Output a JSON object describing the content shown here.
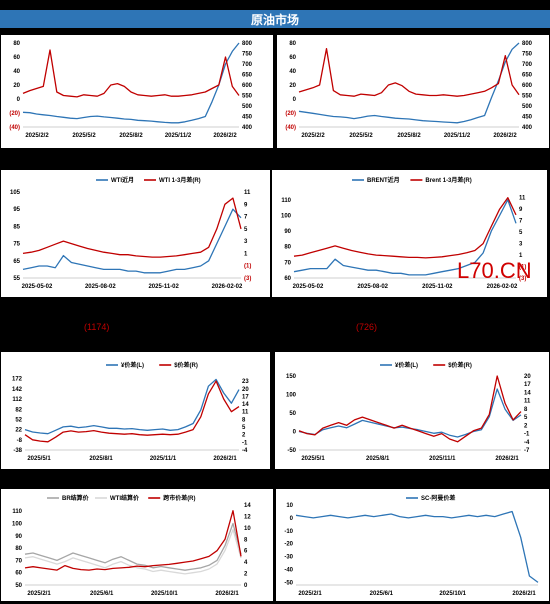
{
  "header": {
    "title": "原油市场"
  },
  "watermark": "L70.CN",
  "section_labels": {
    "left": "(1174)",
    "right": "(726)"
  },
  "chart_data": [
    {
      "id": "c1",
      "type": "line",
      "series": [
        {
          "color": "#2e75b6",
          "axis": "right",
          "values": [
            470,
            468,
            462,
            458,
            455,
            450,
            446,
            442,
            440,
            445,
            450,
            452,
            448,
            445,
            442,
            438,
            436,
            432,
            430,
            428,
            425,
            422,
            420,
            420,
            425,
            432,
            440,
            450,
            520,
            600,
            700,
            760,
            800
          ]
        },
        {
          "color": "#c00000",
          "axis": "left",
          "values": [
            8,
            12,
            15,
            18,
            70,
            10,
            5,
            4,
            3,
            6,
            5,
            4,
            8,
            20,
            22,
            18,
            10,
            6,
            5,
            4,
            5,
            6,
            4,
            4,
            5,
            6,
            8,
            10,
            15,
            20,
            60,
            18,
            5
          ]
        }
      ],
      "x_labels": [
        "2025/2/2",
        "2025/5/2",
        "2025/8/2",
        "2025/11/2",
        "2026/2/2"
      ],
      "left_ticks": [
        "80",
        "60",
        "40",
        "20",
        "0",
        "(20)",
        "(40)"
      ],
      "right_ticks": [
        "800",
        "750",
        "700",
        "650",
        "600",
        "550",
        "500",
        "450",
        "400"
      ],
      "left_range": [
        -40,
        80
      ],
      "right_range": [
        400,
        800
      ]
    },
    {
      "id": "c2",
      "type": "line",
      "series": [
        {
          "color": "#2e75b6",
          "axis": "right",
          "values": [
            475,
            470,
            465,
            460,
            455,
            450,
            448,
            445,
            440,
            445,
            452,
            455,
            450,
            446,
            442,
            440,
            438,
            434,
            430,
            428,
            426,
            424,
            422,
            420,
            426,
            435,
            445,
            455,
            540,
            620,
            710,
            770,
            800
          ]
        },
        {
          "color": "#c00000",
          "axis": "left",
          "values": [
            10,
            13,
            16,
            20,
            72,
            12,
            6,
            5,
            4,
            7,
            6,
            5,
            9,
            20,
            23,
            19,
            11,
            7,
            6,
            5,
            5,
            6,
            5,
            4,
            5,
            7,
            9,
            11,
            16,
            22,
            62,
            20,
            6
          ]
        }
      ],
      "x_labels": [
        "2025/2/2",
        "2025/5/2",
        "2025/8/2",
        "2025/11/2",
        "2026/2/2"
      ],
      "left_ticks": [
        "80",
        "60",
        "40",
        "20",
        "0",
        "(20)",
        "(40)"
      ],
      "right_ticks": [
        "800",
        "750",
        "700",
        "650",
        "600",
        "550",
        "500",
        "450",
        "400"
      ],
      "left_range": [
        -40,
        80
      ],
      "right_range": [
        400,
        800
      ]
    },
    {
      "id": "c3",
      "type": "line",
      "legend": [
        "WTI近月",
        "WTI 1-3月差(R)"
      ],
      "series": [
        {
          "name": "WTI近月",
          "color": "#2e75b6",
          "axis": "left",
          "values": [
            60,
            61,
            62,
            62,
            61,
            68,
            64,
            63,
            62,
            61,
            60,
            60,
            60,
            59,
            59,
            58,
            58,
            58,
            59,
            60,
            60,
            61,
            62,
            65,
            75,
            85,
            95,
            90
          ]
        },
        {
          "name": "WTI 1-3月差(R)",
          "color": "#c00000",
          "axis": "right",
          "values": [
            1,
            1.2,
            1.5,
            2,
            2.5,
            3,
            2.6,
            2.2,
            1.8,
            1.5,
            1.2,
            1,
            0.8,
            0.8,
            0.6,
            0.5,
            0.4,
            0.4,
            0.5,
            0.6,
            0.8,
            1,
            1.2,
            2,
            5,
            9,
            10,
            5
          ]
        }
      ],
      "x_labels": [
        "2025-05-02",
        "2025-08-02",
        "2025-11-02",
        "2026-02-02"
      ],
      "left_ticks": [
        "105",
        "95",
        "85",
        "75",
        "65",
        "55"
      ],
      "right_ticks": [
        "11",
        "9",
        "7",
        "5",
        "3",
        "1",
        "(1)",
        "(3)"
      ],
      "left_range": [
        55,
        105
      ],
      "right_range": [
        -3,
        11
      ]
    },
    {
      "id": "c4",
      "type": "line",
      "legend": [
        "BRENT近月",
        "Brent 1-3月差(R)"
      ],
      "series": [
        {
          "name": "BRENT近月",
          "color": "#2e75b6",
          "axis": "left",
          "values": [
            64,
            65,
            66,
            66,
            66,
            72,
            68,
            67,
            66,
            65,
            65,
            64,
            63,
            63,
            62,
            62,
            62,
            63,
            64,
            65,
            66,
            68,
            70,
            76,
            90,
            100,
            110,
            95
          ]
        },
        {
          "name": "Brent 1-3月差(R)",
          "color": "#c00000",
          "axis": "right",
          "values": [
            0.8,
            1,
            1.4,
            1.8,
            2.2,
            2.6,
            2.2,
            1.8,
            1.5,
            1.2,
            1,
            0.9,
            0.8,
            0.7,
            0.6,
            0.6,
            0.5,
            0.6,
            0.7,
            0.9,
            1.1,
            1.4,
            1.8,
            3,
            6,
            9,
            11,
            8
          ]
        }
      ],
      "x_labels": [
        "2025-05-02",
        "2025-08-02",
        "2025-11-02",
        "2026-02-02"
      ],
      "left_ticks": [
        "110",
        "100",
        "90",
        "80",
        "70",
        "60"
      ],
      "right_ticks": [
        "11",
        "9",
        "7",
        "5",
        "3",
        "1",
        "(1)",
        "(3)"
      ],
      "left_range": [
        60,
        115
      ],
      "right_range": [
        -3,
        12
      ]
    },
    {
      "id": "c5",
      "type": "line",
      "legend": [
        "¥价差(L)",
        "$价差(R)"
      ],
      "series": [
        {
          "name": "¥价差(L)",
          "color": "#2e75b6",
          "axis": "left",
          "values": [
            22,
            15,
            12,
            10,
            20,
            30,
            32,
            28,
            30,
            34,
            30,
            26,
            26,
            24,
            25,
            22,
            20,
            22,
            24,
            20,
            22,
            30,
            40,
            80,
            150,
            170,
            130,
            100,
            140
          ]
        },
        {
          "name": "$价差(R)",
          "color": "#c00000",
          "axis": "right",
          "values": [
            2,
            0,
            -0.5,
            -0.8,
            1,
            3,
            3.5,
            3,
            3.2,
            3.6,
            3,
            2.6,
            2.4,
            2.2,
            2.4,
            2,
            1.8,
            2,
            2.2,
            2,
            2.2,
            3,
            4,
            9,
            18,
            23,
            16,
            11,
            13
          ]
        }
      ],
      "x_labels": [
        "2025/5/1",
        "2025/8/1",
        "2025/11/1",
        "2026/2/1"
      ],
      "left_ticks": [
        "172",
        "142",
        "112",
        "82",
        "52",
        "22",
        "-8",
        "-38"
      ],
      "right_ticks": [
        "23",
        "20",
        "17",
        "14",
        "11",
        "8",
        "5",
        "2",
        "-1",
        "-4"
      ],
      "left_range": [
        -38,
        180
      ],
      "right_range": [
        -4,
        25
      ]
    },
    {
      "id": "c6",
      "type": "line",
      "legend": [
        "¥价差(L)",
        "$价差(R)"
      ],
      "series": [
        {
          "name": "¥价差(L)",
          "color": "#2e75b6",
          "axis": "left",
          "values": [
            0,
            -5,
            -8,
            5,
            10,
            15,
            10,
            20,
            30,
            25,
            20,
            15,
            10,
            12,
            8,
            5,
            0,
            -5,
            -2,
            -10,
            -15,
            -8,
            0,
            5,
            40,
            115,
            60,
            30,
            45
          ]
        },
        {
          "name": "$价差(R)",
          "color": "#c00000",
          "axis": "right",
          "values": [
            0,
            -1,
            -1.5,
            1,
            2,
            3,
            2,
            4,
            5,
            4,
            3,
            2,
            1,
            2,
            1,
            0,
            -1,
            -2,
            -1,
            -3,
            -4,
            -2,
            0,
            1,
            6,
            20,
            10,
            4,
            7
          ]
        }
      ],
      "x_labels": [
        "2025/5/1",
        "2025/8/1",
        "2025/11/1",
        "2026/2/1"
      ],
      "left_ticks": [
        "150",
        "100",
        "50",
        "0",
        "-50"
      ],
      "right_ticks": [
        "20",
        "17",
        "14",
        "11",
        "8",
        "5",
        "2",
        "-1",
        "-4",
        "-7"
      ],
      "left_range": [
        -50,
        150
      ],
      "right_range": [
        -7,
        20
      ]
    },
    {
      "id": "c7",
      "type": "line",
      "legend": [
        "BR结算价",
        "WTI结算价",
        "跨市价差(R)"
      ],
      "series": [
        {
          "name": "BR结算价",
          "color": "#a6a6a6",
          "axis": "left",
          "values": [
            75,
            76,
            74,
            72,
            70,
            73,
            76,
            74,
            72,
            70,
            68,
            71,
            73,
            70,
            67,
            66,
            64,
            65,
            64,
            63,
            62,
            63,
            64,
            66,
            70,
            82,
            100,
            75
          ]
        },
        {
          "name": "WTI结算价",
          "color": "#d9d9d9",
          "axis": "left",
          "values": [
            72,
            73,
            71,
            69,
            67,
            69,
            72,
            70,
            68,
            66,
            64,
            67,
            69,
            66,
            64,
            63,
            61,
            62,
            61,
            60,
            59,
            60,
            61,
            63,
            67,
            78,
            95,
            72
          ]
        },
        {
          "name": "跨市价差(R)",
          "color": "#c00000",
          "axis": "right",
          "values": [
            3,
            3.2,
            3,
            2.8,
            2.6,
            3.4,
            2.9,
            2.7,
            2.6,
            2.8,
            2.7,
            2.9,
            3,
            3.1,
            3.3,
            3.2,
            3.4,
            3.5,
            3.6,
            3.8,
            4,
            4.2,
            4.6,
            5,
            6,
            8,
            13,
            5
          ]
        }
      ],
      "x_labels": [
        "2025/2/1",
        "2025/6/1",
        "2025/10/1",
        "2026/2/1"
      ],
      "left_ticks": [
        "110",
        "100",
        "90",
        "80",
        "70",
        "60",
        "50"
      ],
      "right_ticks": [
        "14",
        "12",
        "10",
        "8",
        "6",
        "4",
        "2",
        "0"
      ],
      "left_range": [
        50,
        115
      ],
      "right_range": [
        0,
        14
      ]
    },
    {
      "id": "c8",
      "type": "line",
      "legend": [
        "SC-阿曼价差"
      ],
      "series": [
        {
          "name": "SC-阿曼价差",
          "color": "#2e75b6",
          "axis": "left",
          "values": [
            2,
            1,
            0,
            1,
            2,
            1,
            0,
            1,
            2,
            1,
            2,
            3,
            1,
            0,
            1,
            2,
            1,
            1,
            0,
            1,
            2,
            1,
            2,
            1,
            3,
            5,
            -15,
            -45,
            -50
          ]
        }
      ],
      "x_labels": [
        "2025/2/1",
        "2025/6/1",
        "2025/10/1",
        "2026/2/1"
      ],
      "left_ticks": [
        "10",
        "0",
        "-10",
        "-20",
        "-30",
        "-40",
        "-50"
      ],
      "left_range": [
        -52,
        10
      ]
    }
  ]
}
